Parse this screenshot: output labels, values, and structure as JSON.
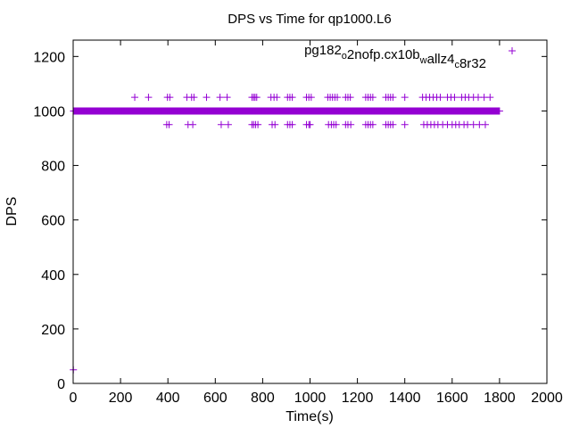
{
  "chart_data": {
    "type": "scatter",
    "title": "DPS vs Time for qp1000.L6",
    "xlabel": "Time(s)",
    "ylabel": "DPS",
    "xlim": [
      0,
      2000
    ],
    "ylim": [
      0,
      1260
    ],
    "x_ticks": [
      0,
      200,
      400,
      600,
      800,
      1000,
      1200,
      1400,
      1600,
      1800,
      2000
    ],
    "y_ticks": [
      0,
      200,
      400,
      600,
      800,
      1000,
      1200
    ],
    "grid": false,
    "legend_position": "top-right",
    "marker": "plus",
    "colors": {
      "series": "#9400d3",
      "axis": "#000000",
      "background": "#ffffff"
    },
    "series": [
      {
        "name": "pg182_o2nofp.cx10b_wallz4_c8r32",
        "legend_parts": [
          {
            "t": "pg182",
            "sub": false
          },
          {
            "t": "o",
            "sub": true
          },
          {
            "t": "2nofp.cx10b",
            "sub": false
          },
          {
            "t": "w",
            "sub": true
          },
          {
            "t": "allz4",
            "sub": false
          },
          {
            "t": "c",
            "sub": true
          },
          {
            "t": "8r32",
            "sub": false
          }
        ],
        "baseline": {
          "y": 1000,
          "x_start": 2,
          "x_end": 1800,
          "step": 2
        },
        "points": [
          [
            1,
            50
          ],
          [
            260,
            1050
          ],
          [
            318,
            1050
          ],
          [
            398,
            1050
          ],
          [
            408,
            1050
          ],
          [
            480,
            1050
          ],
          [
            500,
            1050
          ],
          [
            510,
            1050
          ],
          [
            563,
            1050
          ],
          [
            620,
            1050
          ],
          [
            650,
            1050
          ],
          [
            755,
            1050
          ],
          [
            762,
            1050
          ],
          [
            768,
            1050
          ],
          [
            775,
            1050
          ],
          [
            835,
            1050
          ],
          [
            848,
            1050
          ],
          [
            860,
            1050
          ],
          [
            905,
            1050
          ],
          [
            915,
            1050
          ],
          [
            925,
            1050
          ],
          [
            985,
            1050
          ],
          [
            995,
            1050
          ],
          [
            1005,
            1050
          ],
          [
            1075,
            1050
          ],
          [
            1085,
            1050
          ],
          [
            1095,
            1050
          ],
          [
            1105,
            1050
          ],
          [
            1115,
            1050
          ],
          [
            1150,
            1050
          ],
          [
            1160,
            1050
          ],
          [
            1170,
            1050
          ],
          [
            1235,
            1050
          ],
          [
            1245,
            1050
          ],
          [
            1255,
            1050
          ],
          [
            1265,
            1050
          ],
          [
            1320,
            1050
          ],
          [
            1330,
            1050
          ],
          [
            1340,
            1050
          ],
          [
            1350,
            1050
          ],
          [
            1400,
            1050
          ],
          [
            1475,
            1050
          ],
          [
            1490,
            1050
          ],
          [
            1505,
            1050
          ],
          [
            1520,
            1050
          ],
          [
            1535,
            1050
          ],
          [
            1550,
            1050
          ],
          [
            1580,
            1050
          ],
          [
            1595,
            1050
          ],
          [
            1610,
            1050
          ],
          [
            1640,
            1050
          ],
          [
            1655,
            1050
          ],
          [
            1670,
            1050
          ],
          [
            1690,
            1050
          ],
          [
            1710,
            1050
          ],
          [
            1735,
            1050
          ],
          [
            1760,
            1050
          ],
          [
            395,
            950
          ],
          [
            405,
            950
          ],
          [
            485,
            950
          ],
          [
            505,
            950
          ],
          [
            625,
            950
          ],
          [
            655,
            950
          ],
          [
            755,
            950
          ],
          [
            762,
            950
          ],
          [
            770,
            950
          ],
          [
            780,
            950
          ],
          [
            840,
            950
          ],
          [
            852,
            950
          ],
          [
            905,
            950
          ],
          [
            915,
            950
          ],
          [
            925,
            950
          ],
          [
            985,
            950
          ],
          [
            995,
            950
          ],
          [
            1000,
            950
          ],
          [
            1078,
            950
          ],
          [
            1090,
            950
          ],
          [
            1100,
            950
          ],
          [
            1110,
            950
          ],
          [
            1150,
            950
          ],
          [
            1160,
            950
          ],
          [
            1172,
            950
          ],
          [
            1235,
            950
          ],
          [
            1245,
            950
          ],
          [
            1255,
            950
          ],
          [
            1265,
            950
          ],
          [
            1320,
            950
          ],
          [
            1330,
            950
          ],
          [
            1340,
            950
          ],
          [
            1350,
            950
          ],
          [
            1400,
            950
          ],
          [
            1480,
            950
          ],
          [
            1495,
            950
          ],
          [
            1510,
            950
          ],
          [
            1525,
            950
          ],
          [
            1540,
            950
          ],
          [
            1560,
            950
          ],
          [
            1580,
            950
          ],
          [
            1600,
            950
          ],
          [
            1615,
            950
          ],
          [
            1630,
            950
          ],
          [
            1650,
            950
          ],
          [
            1665,
            950
          ],
          [
            1690,
            950
          ],
          [
            1715,
            950
          ],
          [
            1740,
            950
          ]
        ]
      }
    ]
  }
}
